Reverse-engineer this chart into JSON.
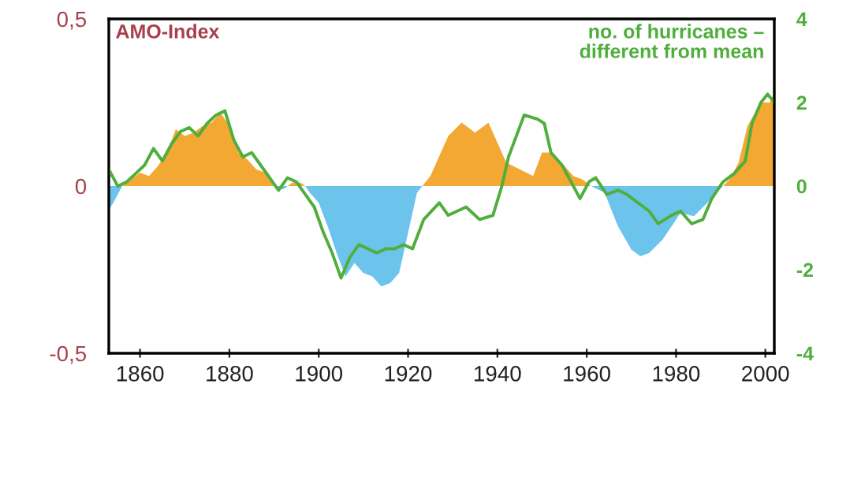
{
  "chart_data": {
    "type": "area",
    "xlim": [
      1853,
      2002
    ],
    "xticks": [
      1860,
      1880,
      1900,
      1920,
      1940,
      1960,
      1980,
      2000
    ],
    "ylim": [
      -0.5,
      0.5
    ],
    "yticks": [
      {
        "value": -0.5,
        "label": "-0,5"
      },
      {
        "value": 0,
        "label": "0"
      },
      {
        "value": 0.5,
        "label": "0,5"
      }
    ],
    "y2lim": [
      -4,
      4
    ],
    "y2ticks": [
      {
        "value": -4,
        "label": "-4"
      },
      {
        "value": -2,
        "label": "-2"
      },
      0,
      2,
      4
    ],
    "grid": false,
    "legend": false,
    "annotations": [
      "AMO-Index"
    ],
    "series": [
      {
        "color": "#f2a833",
        "x": [
          1856,
          1858,
          1860,
          1862,
          1864,
          1866,
          1868,
          1870,
          1872,
          1874,
          1876,
          1878,
          1880,
          1882,
          1884,
          1886,
          1888,
          1890,
          1891,
          1893,
          1894,
          1896,
          1897,
          1922,
          1923.2,
          1925,
          1929,
          1932,
          1935,
          1938,
          1940,
          1942,
          1945,
          1948,
          1950,
          1952,
          1955,
          1957,
          1959,
          1961,
          1975,
          1990.5,
          1992,
          1994,
          1996,
          1999,
          2001,
          2002
        ],
        "values": [
          0,
          0.02,
          0.04,
          0.03,
          0.06,
          0.1,
          0.17,
          0.15,
          0.16,
          0.18,
          0.19,
          0.22,
          0.18,
          0.1,
          0.08,
          0.05,
          0.04,
          0,
          null,
          0,
          0.01,
          0.01,
          0,
          null,
          0,
          0.03,
          0.15,
          0.19,
          0.16,
          0.19,
          0.13,
          0.07,
          0.05,
          0.03,
          0.1,
          0.1,
          0.06,
          0.03,
          0.02,
          0,
          null,
          0,
          0.02,
          0.07,
          0.18,
          0.25,
          0.25,
          0.28
        ]
      },
      {
        "color": "#6cc4ec",
        "x": [
          1853,
          1854,
          1856,
          1870,
          1890,
          1892,
          1893,
          1895,
          1897,
          1898,
          1900,
          1902,
          1904,
          1906,
          1908,
          1910,
          1912,
          1914,
          1916,
          1918,
          1920,
          1922,
          1923.2,
          1940,
          1961,
          1964,
          1967,
          1970,
          1972,
          1974,
          1977,
          1979,
          1981,
          1984,
          1987,
          1989,
          1990.5
        ],
        "values": [
          -0.07,
          -0.05,
          0,
          null,
          0,
          -0.01,
          0,
          null,
          0,
          -0.02,
          -0.05,
          -0.12,
          -0.2,
          -0.27,
          -0.23,
          -0.26,
          -0.27,
          -0.3,
          -0.29,
          -0.26,
          -0.14,
          -0.02,
          0,
          null,
          0,
          -0.02,
          -0.12,
          -0.19,
          -0.21,
          -0.2,
          -0.16,
          -0.12,
          -0.08,
          -0.09,
          -0.05,
          -0.02,
          0
        ]
      },
      {
        "name": "no. of hurricanes –\ndifferent from mean",
        "type": "line",
        "axis": "y2",
        "color": "#4fae3c",
        "x": [
          1853,
          1855,
          1857,
          1859,
          1861,
          1863,
          1865,
          1867,
          1869,
          1871,
          1873,
          1875,
          1877,
          1879,
          1881,
          1883,
          1885,
          1887,
          1889,
          1891,
          1893,
          1895,
          1897,
          1899,
          1901,
          1903,
          1905,
          1907,
          1909,
          1911,
          1913,
          1915,
          1917,
          1919,
          1921,
          1923.5,
          1927,
          1929,
          1933,
          1936,
          1939,
          1941,
          1942.5,
          1946,
          1949,
          1950.5,
          1952,
          1954.5,
          1956,
          1958.5,
          1960.5,
          1962,
          1964.5,
          1967,
          1969,
          1971.5,
          1974,
          1976,
          1979,
          1981,
          1983.5,
          1986,
          1988,
          1990.5,
          1993,
          1995.5,
          1997,
          1999,
          2000.5,
          2002
        ],
        "values": [
          0.4,
          0,
          0.1,
          0.3,
          0.5,
          0.9,
          0.6,
          1,
          1.3,
          1.4,
          1.2,
          1.5,
          1.7,
          1.8,
          1.1,
          0.7,
          0.8,
          0.5,
          0.2,
          -0.1,
          0.2,
          0.1,
          -0.2,
          -0.5,
          -1.1,
          -1.6,
          -2.2,
          -1.7,
          -1.4,
          -1.5,
          -1.6,
          -1.5,
          -1.5,
          -1.4,
          -1.5,
          -0.8,
          -0.4,
          -0.7,
          -0.5,
          -0.8,
          -0.7,
          0,
          0.7,
          1.7,
          1.6,
          1.5,
          0.8,
          0.5,
          0.2,
          -0.3,
          0.1,
          0.2,
          -0.2,
          -0.1,
          -0.2,
          -0.4,
          -0.6,
          -0.9,
          -0.7,
          -0.6,
          -0.9,
          -0.8,
          -0.3,
          0.1,
          0.3,
          0.6,
          1.5,
          2,
          2.2,
          2
        ]
      }
    ]
  }
}
